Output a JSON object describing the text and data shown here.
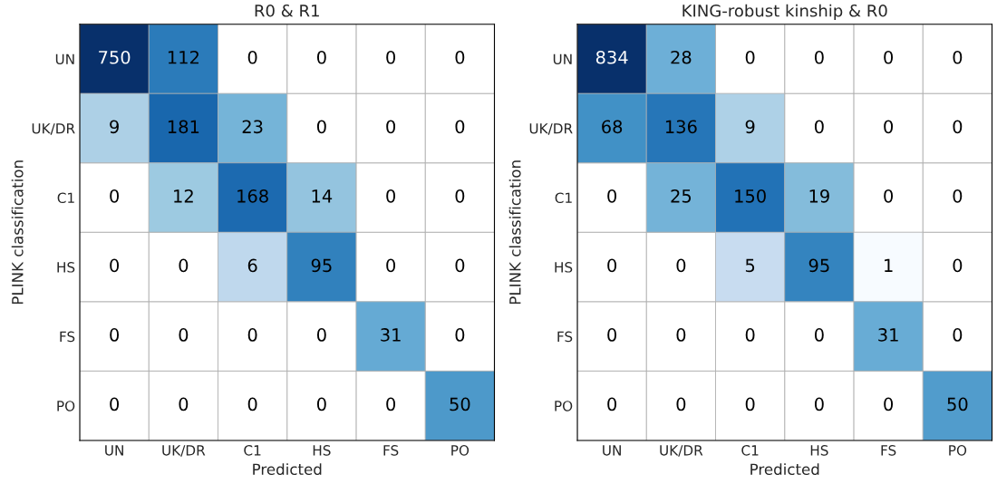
{
  "chart_data": [
    {
      "type": "heatmap",
      "title": "R0 & R1",
      "xlabel": "Predicted",
      "ylabel": "PLINK classification",
      "log": true,
      "categories": [
        "UN",
        "UK/DR",
        "C1",
        "HS",
        "FS",
        "PO"
      ],
      "y_categories": [
        "UN",
        "UK/DR",
        "C1",
        "HS",
        "FS",
        "PO"
      ],
      "cells": [
        [
          750,
          112,
          0,
          0,
          0,
          0
        ],
        [
          9,
          181,
          23,
          0,
          0,
          0
        ],
        [
          0,
          12,
          168,
          14,
          0,
          0
        ],
        [
          0,
          0,
          6,
          95,
          0,
          0
        ],
        [
          0,
          0,
          0,
          0,
          31,
          0
        ],
        [
          0,
          0,
          0,
          0,
          0,
          50
        ]
      ],
      "data_labels": true
    },
    {
      "type": "heatmap",
      "title": "KING-robust kinship & R0",
      "xlabel": "Predicted",
      "ylabel": "PLINK classification",
      "log": true,
      "categories": [
        "UN",
        "UK/DR",
        "C1",
        "HS",
        "FS",
        "PO"
      ],
      "y_categories": [
        "UN",
        "UK/DR",
        "C1",
        "HS",
        "FS",
        "PO"
      ],
      "cells": [
        [
          834,
          28,
          0,
          0,
          0,
          0
        ],
        [
          68,
          136,
          9,
          0,
          0,
          0
        ],
        [
          0,
          25,
          150,
          19,
          0,
          0
        ],
        [
          0,
          0,
          5,
          95,
          1,
          0
        ],
        [
          0,
          0,
          0,
          0,
          31,
          0
        ],
        [
          0,
          0,
          0,
          0,
          0,
          50
        ]
      ],
      "data_labels": true
    }
  ]
}
